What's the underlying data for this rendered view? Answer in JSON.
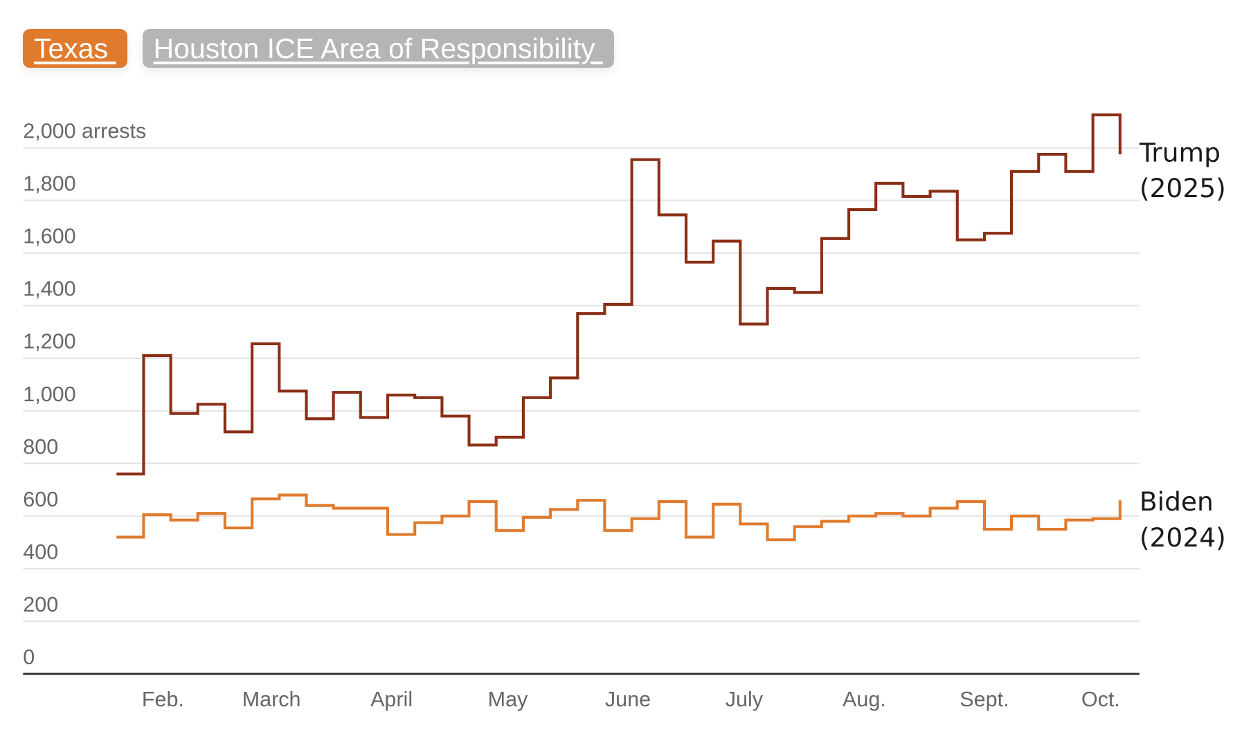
{
  "tabs": [
    {
      "label": "Texas ",
      "active": true
    },
    {
      "label": "Houston ICE Area of Responsibility ",
      "active": false
    }
  ],
  "colors": {
    "trump": "#8b2e16",
    "biden": "#e07b2e",
    "tab_active": "#e07b2e",
    "tab_inactive": "#b5b5b5",
    "grid": "#e6e6e6",
    "axis": "#333333"
  },
  "chart_data": {
    "type": "line",
    "step": true,
    "title": "",
    "xlabel": "",
    "ylabel": "",
    "ylim": [
      0,
      2000
    ],
    "grid": true,
    "y_ticks": [
      {
        "value": 2000,
        "label": "2,000 arrests"
      },
      {
        "value": 1800,
        "label": "1,800"
      },
      {
        "value": 1600,
        "label": "1,600"
      },
      {
        "value": 1400,
        "label": "1,400"
      },
      {
        "value": 1200,
        "label": "1,200"
      },
      {
        "value": 1000,
        "label": "1,000"
      },
      {
        "value": 800,
        "label": "800"
      },
      {
        "value": 600,
        "label": "600"
      },
      {
        "value": 400,
        "label": "400"
      },
      {
        "value": 200,
        "label": "200"
      },
      {
        "value": 0,
        "label": "0"
      }
    ],
    "x_ticks": [
      {
        "date": "02-01",
        "label": "Feb."
      },
      {
        "date": "03-01",
        "label": "March"
      },
      {
        "date": "04-01",
        "label": "April"
      },
      {
        "date": "05-01",
        "label": "May"
      },
      {
        "date": "06-01",
        "label": "June"
      },
      {
        "date": "07-01",
        "label": "July"
      },
      {
        "date": "08-01",
        "label": "Aug."
      },
      {
        "date": "09-01",
        "label": "Sept."
      },
      {
        "date": "10-01",
        "label": "Oct."
      }
    ],
    "x": [
      "01-20",
      "01-27",
      "02-03",
      "02-10",
      "02-17",
      "02-24",
      "03-03",
      "03-10",
      "03-17",
      "03-24",
      "03-31",
      "04-07",
      "04-14",
      "04-21",
      "04-28",
      "05-05",
      "05-12",
      "05-19",
      "05-26",
      "06-02",
      "06-09",
      "06-16",
      "06-23",
      "06-30",
      "07-07",
      "07-14",
      "07-21",
      "07-28",
      "08-04",
      "08-11",
      "08-18",
      "08-25",
      "09-01",
      "09-08",
      "09-15",
      "09-22",
      "09-29"
    ],
    "series": [
      {
        "name": "Trump\n(2025)",
        "label_lines": [
          "Trump",
          "(2025)"
        ],
        "values": [
          760,
          1210,
          990,
          1025,
          920,
          1255,
          1075,
          970,
          1070,
          975,
          1060,
          1050,
          980,
          870,
          900,
          1050,
          1125,
          1370,
          1405,
          1955,
          1745,
          1565,
          1645,
          1330,
          1465,
          1450,
          1655,
          1765,
          1865,
          1815,
          1835,
          1650,
          1675,
          1910,
          1975,
          1910,
          2125
        ],
        "end_value": 1975
      },
      {
        "name": "Biden\n(2024)",
        "label_lines": [
          "Biden",
          "(2024)"
        ],
        "values": [
          520,
          605,
          585,
          610,
          555,
          665,
          680,
          640,
          630,
          630,
          530,
          575,
          600,
          655,
          545,
          595,
          625,
          660,
          545,
          590,
          655,
          520,
          645,
          570,
          510,
          560,
          580,
          600,
          610,
          600,
          630,
          655,
          550,
          600,
          550,
          585,
          590
        ],
        "end_value": 660
      }
    ]
  }
}
